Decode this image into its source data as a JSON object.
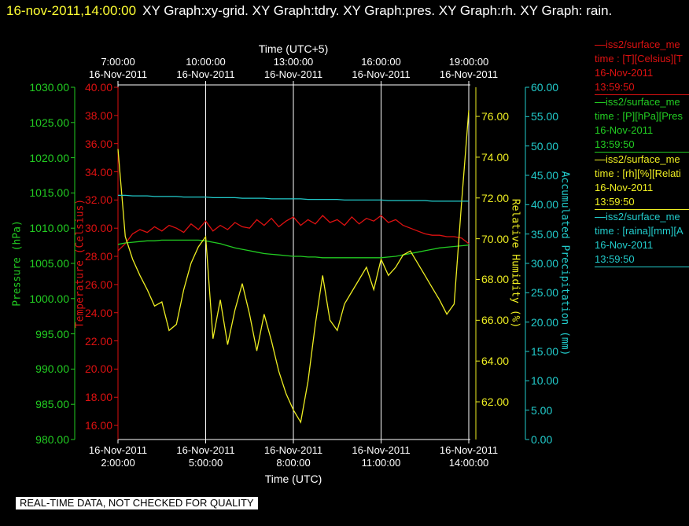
{
  "header": {
    "timestamp": "16-nov-2011,14:00:00",
    "title": "XY Graph:xy-grid. XY Graph:tdry. XY Graph:pres. XY Graph:rh. XY Graph: rain."
  },
  "chart_data": {
    "type": "line",
    "xlabel": "Time (UTC)",
    "x2label": "Time (UTC+5)",
    "grid": true,
    "xlim": [
      2,
      14
    ],
    "xticks": [
      {
        "value": 2,
        "label": "16-Nov-2011\n2:00:00"
      },
      {
        "value": 5,
        "label": "16-Nov-2011\n5:00:00"
      },
      {
        "value": 8,
        "label": "16-Nov-2011\n8:00:00"
      },
      {
        "value": 11,
        "label": "16-Nov-2011\n11:00:00"
      },
      {
        "value": 14,
        "label": "16-Nov-2011\n14:00:00"
      }
    ],
    "x2lim": [
      7,
      19
    ],
    "x2ticks": [
      {
        "value": 7,
        "label": "7:00:00\n16-Nov-2011"
      },
      {
        "value": 10,
        "label": "10:00:00\n16-Nov-2011"
      },
      {
        "value": 13,
        "label": "13:00:00\n16-Nov-2011"
      },
      {
        "value": 16,
        "label": "16:00:00\n16-Nov-2011"
      },
      {
        "value": 19,
        "label": "19:00:00\n16-Nov-2011"
      }
    ],
    "axes": [
      {
        "label": "Pressure (hPa)",
        "color": "#22cc22",
        "lim": [
          980,
          1030
        ],
        "ticks": [
          {
            "value": 980,
            "label": "980.00"
          },
          {
            "value": 985,
            "label": "985.00"
          },
          {
            "value": 990,
            "label": "990.00"
          },
          {
            "value": 995,
            "label": "995.00"
          },
          {
            "value": 1000,
            "label": "1000.00"
          },
          {
            "value": 1005,
            "label": "1005.00"
          },
          {
            "value": 1010,
            "label": "1010.00"
          },
          {
            "value": 1015,
            "label": "1015.00"
          },
          {
            "value": 1020,
            "label": "1020.00"
          },
          {
            "value": 1025,
            "label": "1025.00"
          },
          {
            "value": 1030,
            "label": "1030.00"
          }
        ]
      },
      {
        "label": "Temperature (Celsius)",
        "color": "#dd1111",
        "lim": [
          15,
          40
        ],
        "ticks": [
          {
            "value": 16,
            "label": "16.00"
          },
          {
            "value": 18,
            "label": "18.00"
          },
          {
            "value": 20,
            "label": "20.00"
          },
          {
            "value": 22,
            "label": "22.00"
          },
          {
            "value": 24,
            "label": "24.00"
          },
          {
            "value": 26,
            "label": "26.00"
          },
          {
            "value": 28,
            "label": "28.00"
          },
          {
            "value": 30,
            "label": "30.00"
          },
          {
            "value": 32,
            "label": "32.00"
          },
          {
            "value": 34,
            "label": "34.00"
          },
          {
            "value": 36,
            "label": "36.00"
          },
          {
            "value": 38,
            "label": "38.00"
          },
          {
            "value": 40,
            "label": "40.00"
          }
        ]
      },
      {
        "label": "Relative Humidity (%)",
        "color": "#eeee22",
        "lim": [
          60.15,
          77.43
        ],
        "ticks": [
          {
            "value": 62,
            "label": "62.00"
          },
          {
            "value": 64,
            "label": "64.00"
          },
          {
            "value": 66,
            "label": "66.00"
          },
          {
            "value": 68,
            "label": "68.00"
          },
          {
            "value": 70,
            "label": "70.00"
          },
          {
            "value": 72,
            "label": "72.00"
          },
          {
            "value": 74,
            "label": "74.00"
          },
          {
            "value": 76,
            "label": "76.00"
          }
        ]
      },
      {
        "label": "Accumulated Precipitation (mm)",
        "color": "#22cccc",
        "lim": [
          0,
          60
        ],
        "ticks": [
          {
            "value": 0,
            "label": "0.00"
          },
          {
            "value": 5,
            "label": "5.00"
          },
          {
            "value": 10,
            "label": "10.00"
          },
          {
            "value": 15,
            "label": "15.00"
          },
          {
            "value": 20,
            "label": "20.00"
          },
          {
            "value": 25,
            "label": "25.00"
          },
          {
            "value": 30,
            "label": "30.00"
          },
          {
            "value": 35,
            "label": "35.00"
          },
          {
            "value": 40,
            "label": "40.00"
          },
          {
            "value": 45,
            "label": "45.00"
          },
          {
            "value": 50,
            "label": "50.00"
          },
          {
            "value": 55,
            "label": "55.00"
          },
          {
            "value": 60,
            "label": "60.00"
          }
        ]
      }
    ],
    "x": [
      2,
      2.25,
      2.5,
      2.75,
      3,
      3.25,
      3.5,
      3.75,
      4,
      4.25,
      4.5,
      4.75,
      5,
      5.25,
      5.5,
      5.75,
      6,
      6.25,
      6.5,
      6.75,
      7,
      7.25,
      7.5,
      7.75,
      8,
      8.25,
      8.5,
      8.75,
      9,
      9.25,
      9.5,
      9.75,
      10,
      10.25,
      10.5,
      10.75,
      11,
      11.25,
      11.5,
      11.75,
      12,
      12.25,
      12.5,
      12.75,
      13,
      13.25,
      13.5,
      13.75,
      14
    ],
    "series": [
      {
        "name": "iss2/surface_me",
        "legend": [
          "time : [T][Celsius][T",
          "16-Nov-2011",
          "13:59:50"
        ],
        "color": "#dd1111",
        "axis": 1,
        "values": [
          28.4,
          28.9,
          29.6,
          29.9,
          29.7,
          30.1,
          29.8,
          30.2,
          30.0,
          29.7,
          30.3,
          29.9,
          30.5,
          29.8,
          30.2,
          29.9,
          30.4,
          30.1,
          30.0,
          30.6,
          30.2,
          30.7,
          30.1,
          30.5,
          30.8,
          30.2,
          30.6,
          30.3,
          30.9,
          30.4,
          30.6,
          30.2,
          30.8,
          30.3,
          30.7,
          30.5,
          30.9,
          30.4,
          30.6,
          30.2,
          30.0,
          29.8,
          29.6,
          29.5,
          29.5,
          29.4,
          29.4,
          29.3,
          28.9
        ]
      },
      {
        "name": "iss2/surface_me",
        "legend": [
          "time : [P][hPa][Pres",
          "16-Nov-2011",
          "13:59:50"
        ],
        "color": "#22cc22",
        "axis": 0,
        "values": [
          1007.7,
          1007.9,
          1008.0,
          1008.1,
          1008.2,
          1008.2,
          1008.3,
          1008.3,
          1008.3,
          1008.3,
          1008.3,
          1008.3,
          1008.2,
          1008.0,
          1007.8,
          1007.5,
          1007.2,
          1007.0,
          1006.8,
          1006.6,
          1006.4,
          1006.3,
          1006.2,
          1006.1,
          1006.0,
          1006.0,
          1005.9,
          1005.9,
          1005.8,
          1005.8,
          1005.8,
          1005.8,
          1005.8,
          1005.8,
          1005.8,
          1005.8,
          1005.8,
          1005.9,
          1006.0,
          1006.2,
          1006.4,
          1006.6,
          1006.8,
          1007.0,
          1007.2,
          1007.3,
          1007.4,
          1007.5,
          1007.6
        ]
      },
      {
        "name": "iss2/surface_me",
        "legend": [
          "time : [rh][%][Relati",
          "16-Nov-2011",
          "13:59:50"
        ],
        "color": "#eeee22",
        "axis": 2,
        "values": [
          74.4,
          70.1,
          69.0,
          68.2,
          67.5,
          66.7,
          66.9,
          65.5,
          65.8,
          67.5,
          68.8,
          69.6,
          70.1,
          65.1,
          67.0,
          64.8,
          66.5,
          67.8,
          66.3,
          64.5,
          66.3,
          65.0,
          63.5,
          62.4,
          61.6,
          61.0,
          63.0,
          65.8,
          68.2,
          66.0,
          65.5,
          66.8,
          67.4,
          68.0,
          68.6,
          67.5,
          69.0,
          68.2,
          68.6,
          69.2,
          69.4,
          68.8,
          68.2,
          67.6,
          67.0,
          66.3,
          66.8,
          71.7,
          76.3
        ]
      },
      {
        "name": "iss2/surface_me",
        "legend": [
          "time : [raina][mm][A",
          "16-Nov-2011",
          "13:59:50"
        ],
        "color": "#22cccc",
        "axis": 3,
        "values": [
          41.6,
          41.6,
          41.5,
          41.5,
          41.5,
          41.4,
          41.4,
          41.4,
          41.4,
          41.3,
          41.3,
          41.3,
          41.3,
          41.2,
          41.2,
          41.2,
          41.2,
          41.1,
          41.1,
          41.1,
          41.1,
          41.0,
          41.0,
          41.0,
          41.0,
          41.0,
          40.9,
          40.9,
          40.9,
          40.9,
          40.9,
          40.8,
          40.8,
          40.8,
          40.8,
          40.8,
          40.8,
          40.7,
          40.7,
          40.7,
          40.7,
          40.7,
          40.7,
          40.6,
          40.6,
          40.6,
          40.6,
          40.6,
          40.6
        ]
      }
    ]
  },
  "footer": "REAL-TIME DATA, NOT CHECKED FOR QUALITY"
}
